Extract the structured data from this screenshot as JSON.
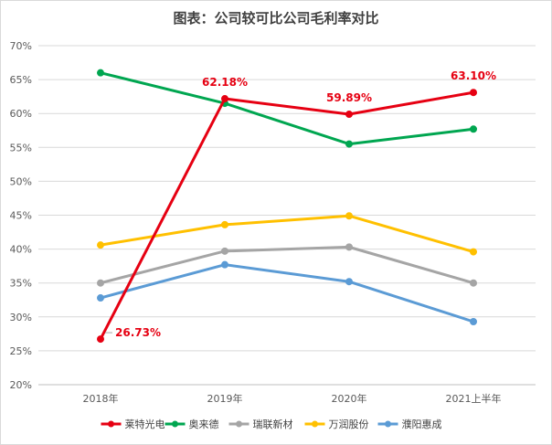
{
  "chart_data": {
    "type": "line",
    "title": "图表：公司较可比公司毛利率对比",
    "xlabel": "",
    "ylabel": "",
    "categories": [
      "2018年",
      "2019年",
      "2020年",
      "2021上半年"
    ],
    "y_ticks": [
      "20%",
      "25%",
      "30%",
      "35%",
      "40%",
      "45%",
      "50%",
      "55%",
      "60%",
      "65%",
      "70%"
    ],
    "ylim": [
      20,
      70
    ],
    "grid": true,
    "legend_position": "bottom",
    "series": [
      {
        "name": "莱特光电",
        "color": "#e60012",
        "values": [
          26.73,
          62.18,
          59.89,
          63.1
        ],
        "labels": [
          "26.73%",
          "62.18%",
          "59.89%",
          "63.10%"
        ]
      },
      {
        "name": "奥来德",
        "color": "#00a650",
        "values": [
          66.0,
          61.5,
          55.5,
          57.7
        ]
      },
      {
        "name": "瑞联新材",
        "color": "#a5a5a5",
        "values": [
          35.0,
          39.7,
          40.3,
          35.0
        ]
      },
      {
        "name": "万润股份",
        "color": "#ffc000",
        "values": [
          40.6,
          43.6,
          44.9,
          39.6
        ]
      },
      {
        "name": "濮阳惠成",
        "color": "#5b9bd5",
        "values": [
          32.8,
          37.7,
          35.2,
          29.3
        ]
      }
    ]
  }
}
